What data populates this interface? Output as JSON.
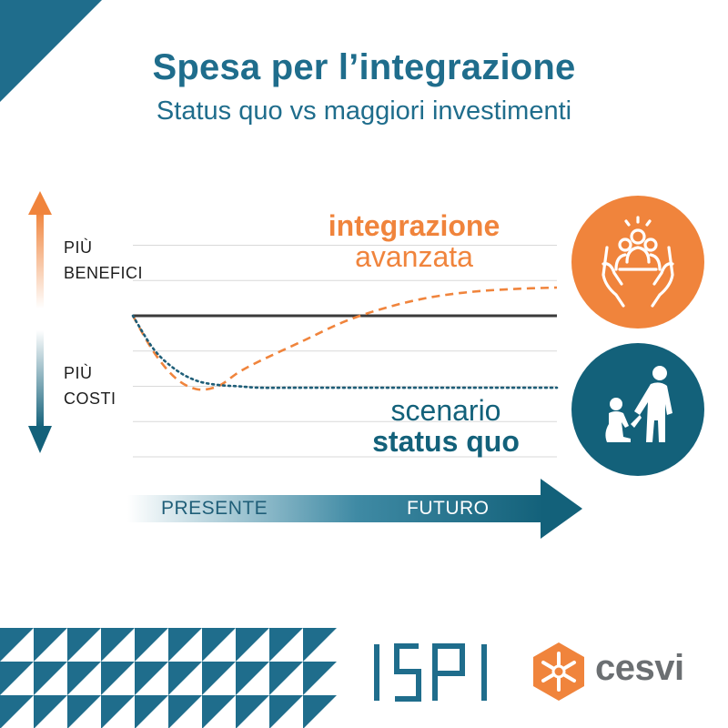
{
  "header": {
    "title": "Spesa per l’integrazione",
    "subtitle": "Status quo vs maggiori investimenti"
  },
  "y_axis": {
    "top_label_line1": "PIÙ",
    "top_label_line2": "BENEFICI",
    "bottom_label_line1": "PIÙ",
    "bottom_label_line2": "COSTI"
  },
  "series_labels": {
    "integration_line1": "integrazione",
    "integration_line2": "avanzata",
    "status_line1": "scenario",
    "status_line2": "status quo"
  },
  "timeline": {
    "present": "PRESENTE",
    "future": "FUTURO"
  },
  "logos": {
    "ispi": "ISPI",
    "cesvi": "cesvi"
  },
  "icons": {
    "integration": "hands-holding-people-icon",
    "status_quo": "adult-and-child-icon"
  },
  "colors": {
    "teal": "#1f6d8c",
    "dark_teal": "#13617a",
    "orange": "#f0843c",
    "baseline": "#3a3a3a"
  },
  "chart_data": {
    "type": "line",
    "title": "Spesa per l’integrazione",
    "subtitle": "Status quo vs maggiori investimenti",
    "xlabel": "",
    "ylabel": "",
    "x_range": [
      "PRESENTE",
      "FUTURO"
    ],
    "ylim": [
      -4,
      4
    ],
    "baseline": 0,
    "grid": true,
    "series": [
      {
        "name": "integrazione avanzata",
        "style": "dashed",
        "color": "#f0843c",
        "x": [
          0,
          0.05,
          0.1,
          0.15,
          0.2,
          0.25,
          0.3,
          0.4,
          0.5,
          0.6,
          0.7,
          0.8,
          0.9,
          1.0
        ],
        "y": [
          0,
          -1.3,
          -2.2,
          -2.6,
          -2.5,
          -2.0,
          -1.6,
          -0.9,
          -0.2,
          0.3,
          0.65,
          0.85,
          0.95,
          1.0
        ]
      },
      {
        "name": "scenario status quo",
        "style": "dotted",
        "color": "#1f5e78",
        "x": [
          0,
          0.05,
          0.1,
          0.15,
          0.2,
          0.25,
          0.3,
          0.4,
          0.6,
          0.8,
          1.0
        ],
        "y": [
          0,
          -1.2,
          -1.9,
          -2.3,
          -2.45,
          -2.5,
          -2.55,
          -2.55,
          -2.55,
          -2.55,
          -2.55
        ]
      }
    ]
  }
}
